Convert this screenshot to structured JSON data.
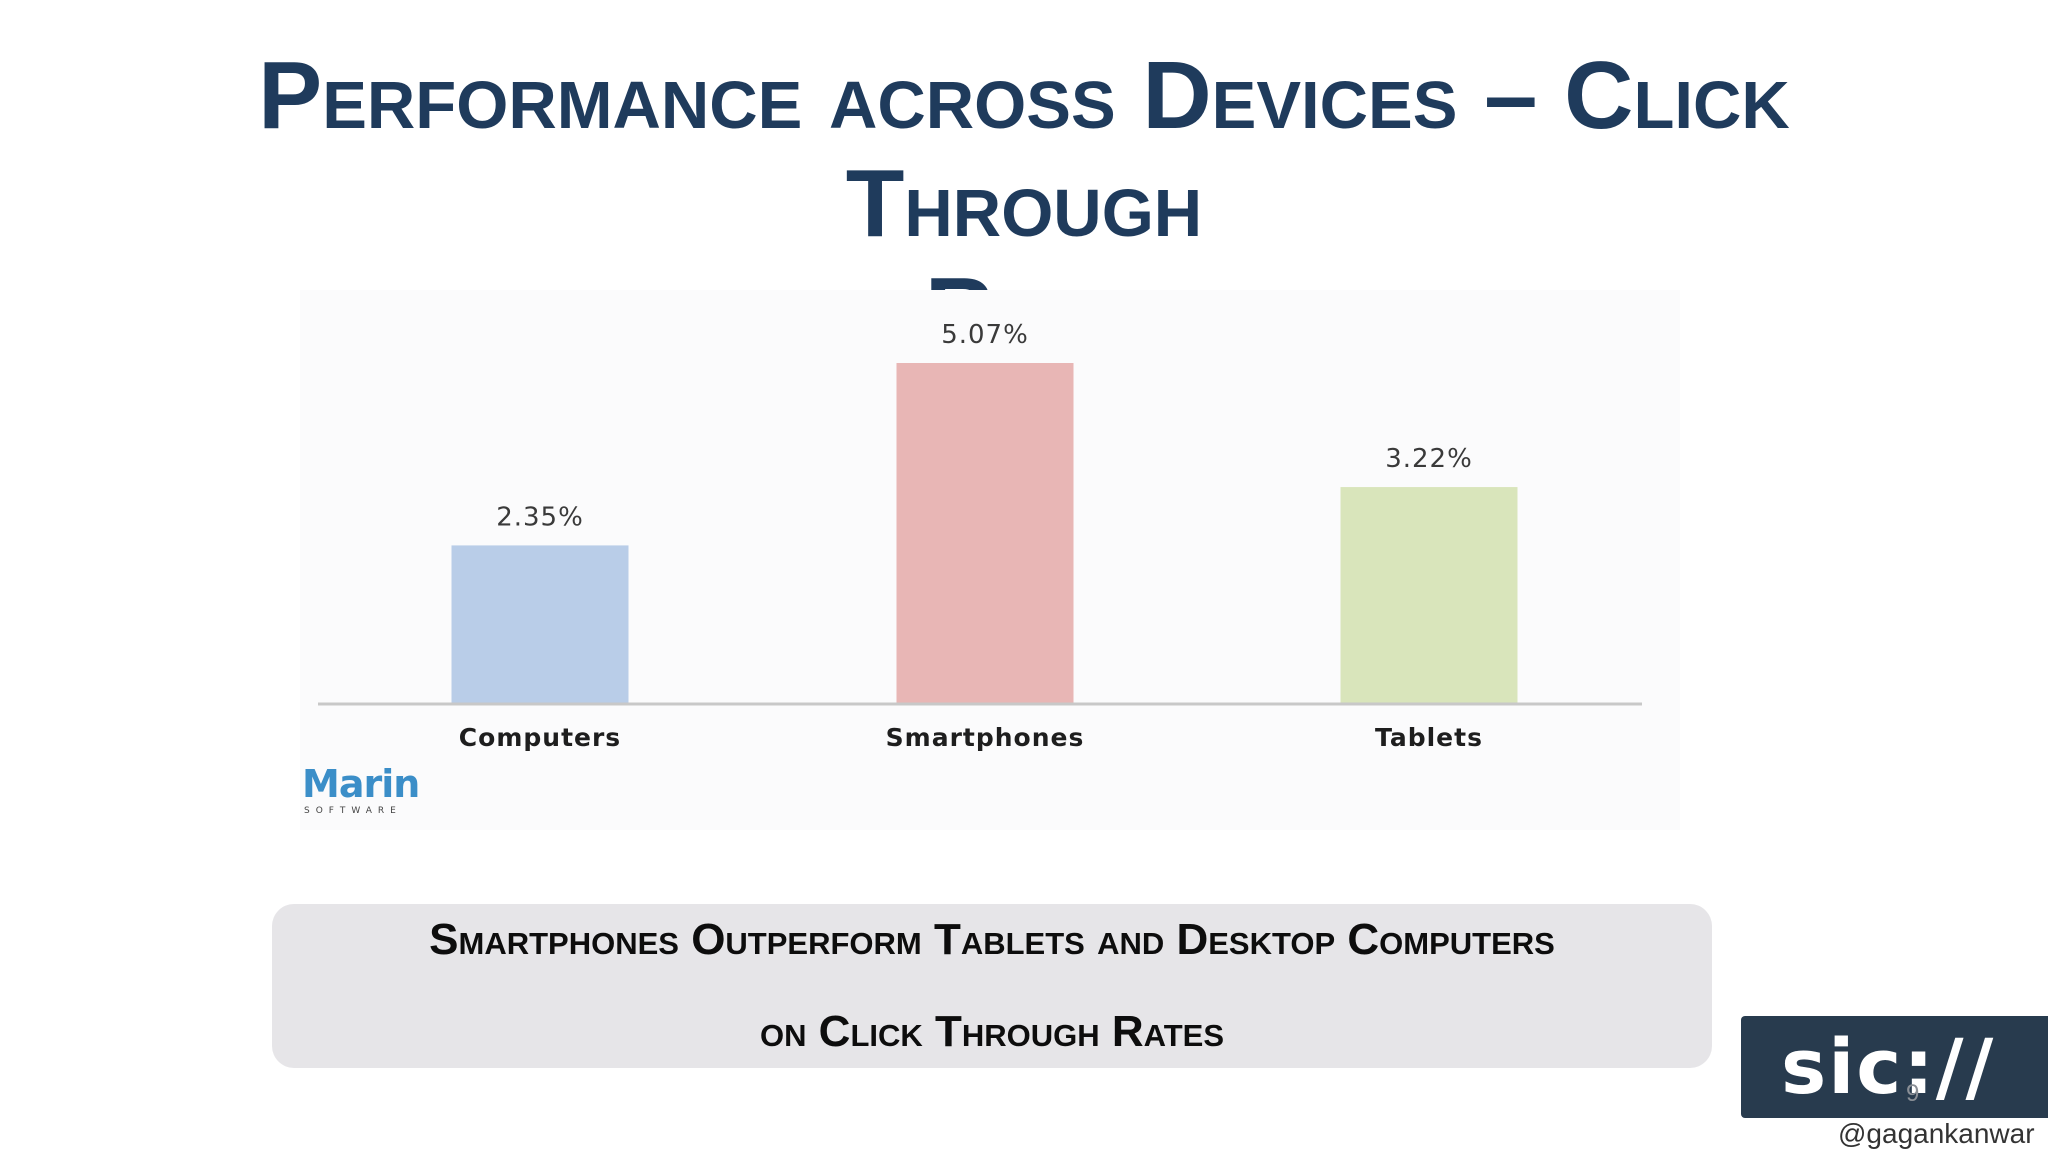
{
  "slide": {
    "title_line1": "Performance across Devices – Click Through",
    "title_line2": "Rate",
    "callout_line1": "Smartphones Outperform Tablets and Desktop Computers",
    "callout_line2": "on Click Through Rates",
    "logo_word": "Marin",
    "logo_sub": "SOFTWARE",
    "brand": "sic://",
    "page_number": "9",
    "handle": "@gagankanwar"
  },
  "colors": {
    "title": "#1f3b5c",
    "computers_bar": "#b9cde8",
    "smartphones_bar": "#e8b6b5",
    "tablets_bar": "#d9e5bb",
    "axis": "#c8c8c8"
  },
  "chart_data": {
    "type": "bar",
    "title": "",
    "xlabel": "",
    "ylabel": "",
    "categories": [
      "Computers",
      "Smartphones",
      "Tablets"
    ],
    "values": [
      2.35,
      5.07,
      3.22
    ],
    "value_labels": [
      "2.35%",
      "5.07%",
      "3.22%"
    ],
    "ylim": [
      0,
      5.07
    ],
    "grid": false,
    "legend": "none"
  }
}
